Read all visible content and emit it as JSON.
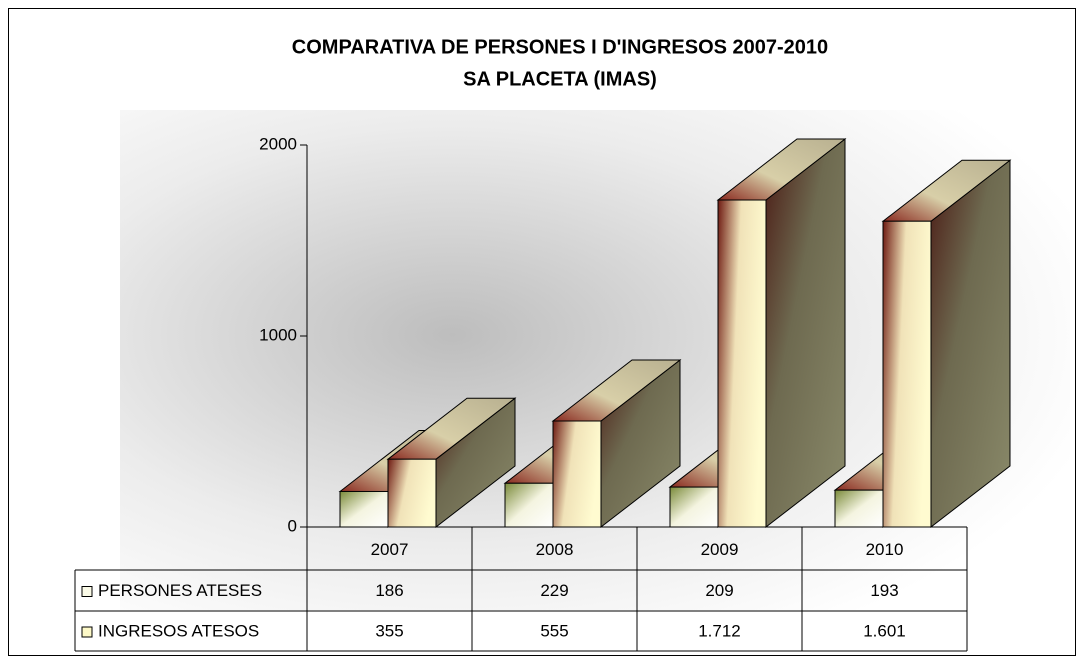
{
  "chart_data": {
    "type": "bar3d",
    "title": "COMPARATIVA DE PERSONES I D'INGRESOS 2007-2010",
    "subtitle": "SA PLACETA (IMAS)",
    "categories": [
      "2007",
      "2008",
      "2009",
      "2010"
    ],
    "series": [
      {
        "name": "PERSONES ATESES",
        "color": "#fbfbe8",
        "values": [
          186,
          229,
          209,
          193
        ]
      },
      {
        "name": "INGRESOS ATESOS",
        "color": "#fdf9c8",
        "values": [
          355,
          555,
          1712,
          1601
        ],
        "value_labels": [
          "355",
          "555",
          "1.712",
          "1.601"
        ]
      }
    ],
    "ylim": [
      0,
      2000
    ],
    "yticks": [
      0,
      1000,
      2000
    ]
  }
}
